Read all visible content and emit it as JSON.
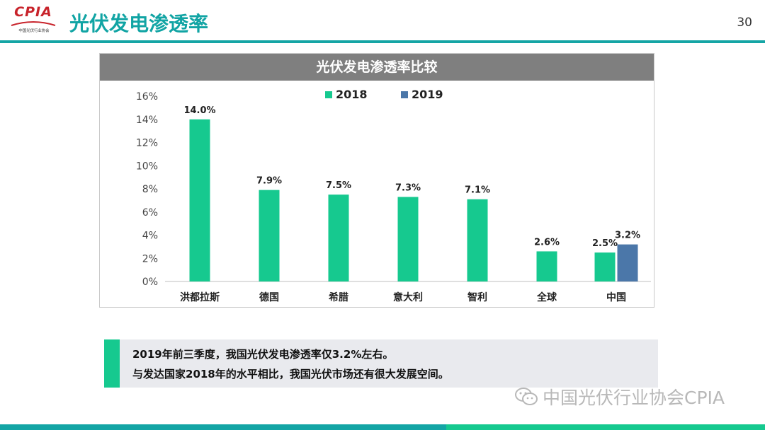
{
  "header": {
    "logo_text": "CPIA",
    "logo_subtext": "中国光伏行业协会",
    "title": "光伏发电渗透率",
    "page_number": "30"
  },
  "colors": {
    "accent": "#14a5a5",
    "series_2018": "#16c98f",
    "series_2019": "#4b77a9",
    "chart_header_bg": "#7f7f7f"
  },
  "chart_data": {
    "type": "bar",
    "title": "光伏发电渗透率比较",
    "categories": [
      "洪都拉斯",
      "德国",
      "希腊",
      "意大利",
      "智利",
      "全球",
      "中国"
    ],
    "series": [
      {
        "name": "2018",
        "values": [
          14.0,
          7.9,
          7.5,
          7.3,
          7.1,
          2.6,
          2.5
        ],
        "labels": [
          "14.0%",
          "7.9%",
          "7.5%",
          "7.3%",
          "7.1%",
          "2.6%",
          "2.5%"
        ]
      },
      {
        "name": "2019",
        "values": [
          null,
          null,
          null,
          null,
          null,
          null,
          3.2
        ],
        "labels": [
          "",
          "",
          "",
          "",
          "",
          "",
          "3.2%"
        ]
      }
    ],
    "yticks": [
      "0%",
      "2%",
      "4%",
      "6%",
      "8%",
      "10%",
      "12%",
      "14%",
      "16%"
    ],
    "ylim": [
      0,
      16
    ],
    "xlabel": "",
    "ylabel": "",
    "legend_position": "top-center",
    "grid": false
  },
  "note": {
    "line1": "2019年前三季度，我国光伏发电渗透率仅3.2%左右。",
    "line2": "与发达国家2018年的水平相比，我国光伏市场还有很大发展空间。"
  },
  "watermark": {
    "icon": "wechat-icon",
    "text": "中国光伏行业协会CPIA"
  }
}
